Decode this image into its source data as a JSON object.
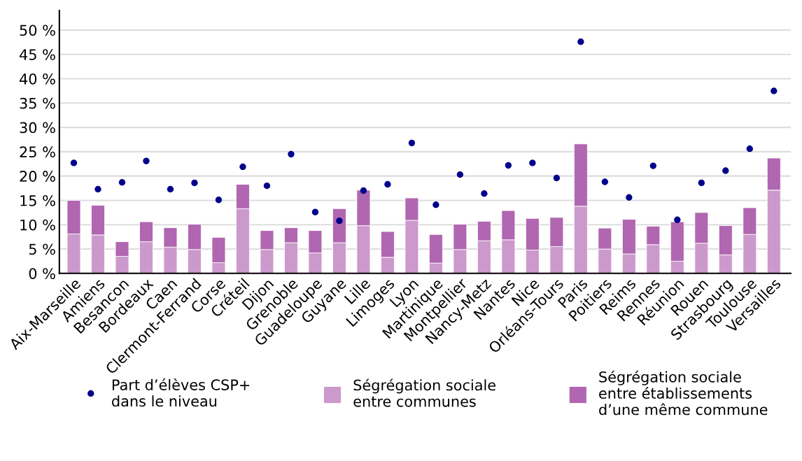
{
  "chart_data": {
    "type": "bar",
    "stacked": true,
    "categories": [
      "Aix-Marseille",
      "Amiens",
      "Besancon",
      "Bordeaux",
      "Caen",
      "Clermont-Ferrand",
      "Corse",
      "Créteil",
      "Dijon",
      "Grenoble",
      "Guadeloupe",
      "Guyane",
      "Lille",
      "Limoges",
      "Lyon",
      "Martinique",
      "Montpellier",
      "Nancy-Metz",
      "Nantes",
      "Nice",
      "Orléans-Tours",
      "Paris",
      "Poitiers",
      "Reims",
      "Rennes",
      "Réunion",
      "Rouen",
      "Strasbourg",
      "Toulouse",
      "Versailles"
    ],
    "series": [
      {
        "name": "Ségrégation sociale\nentre communes",
        "color": "#cc99cc",
        "values": [
          8.1,
          7.9,
          3.5,
          6.5,
          5.4,
          4.9,
          2.2,
          13.3,
          4.9,
          6.3,
          4.2,
          6.3,
          9.8,
          3.3,
          10.9,
          2.1,
          4.9,
          6.7,
          6.9,
          4.8,
          5.5,
          13.8,
          5.0,
          4.0,
          5.9,
          2.5,
          6.2,
          3.8,
          8.0,
          17.1
        ]
      },
      {
        "name": "Ségrégation sociale\nentre établissements\nd’une même commune",
        "color": "#b066b0",
        "values": [
          6.9,
          6.1,
          3.0,
          4.1,
          4.0,
          5.2,
          5.2,
          5.0,
          3.9,
          3.1,
          4.6,
          7.0,
          7.3,
          5.3,
          4.6,
          5.9,
          5.2,
          4.0,
          6.0,
          6.5,
          6.0,
          12.8,
          4.3,
          7.1,
          3.8,
          8.1,
          6.3,
          6.0,
          5.5,
          6.6
        ]
      },
      {
        "name": "Part d’élèves CSP+\ndans le niveau",
        "type": "scatter",
        "color": "#00008b",
        "marker": "circle",
        "values": [
          22.7,
          17.3,
          18.7,
          23.1,
          17.3,
          18.6,
          15.1,
          21.9,
          18.0,
          24.5,
          12.6,
          10.8,
          17.0,
          18.3,
          26.8,
          14.1,
          20.3,
          16.4,
          22.2,
          22.7,
          19.6,
          47.6,
          18.8,
          15.6,
          22.1,
          11.0,
          18.6,
          21.1,
          25.6,
          37.5
        ]
      }
    ],
    "ylim": [
      0,
      54
    ],
    "yticks": [
      {
        "value": 0,
        "label": "0 %"
      },
      {
        "value": 5,
        "label": "5 %"
      },
      {
        "value": 10,
        "label": "10 %"
      },
      {
        "value": 15,
        "label": "15 %"
      },
      {
        "value": 20,
        "label": "20 %"
      },
      {
        "value": 25,
        "label": "25 %"
      },
      {
        "value": 30,
        "label": "30 %"
      },
      {
        "value": 35,
        "label": "35 %"
      },
      {
        "value": 40,
        "label": "40 %"
      },
      {
        "value": 45,
        "label": "45 %"
      },
      {
        "value": 50,
        "label": "50 %"
      }
    ],
    "grid": "y",
    "legend": "bottom"
  }
}
